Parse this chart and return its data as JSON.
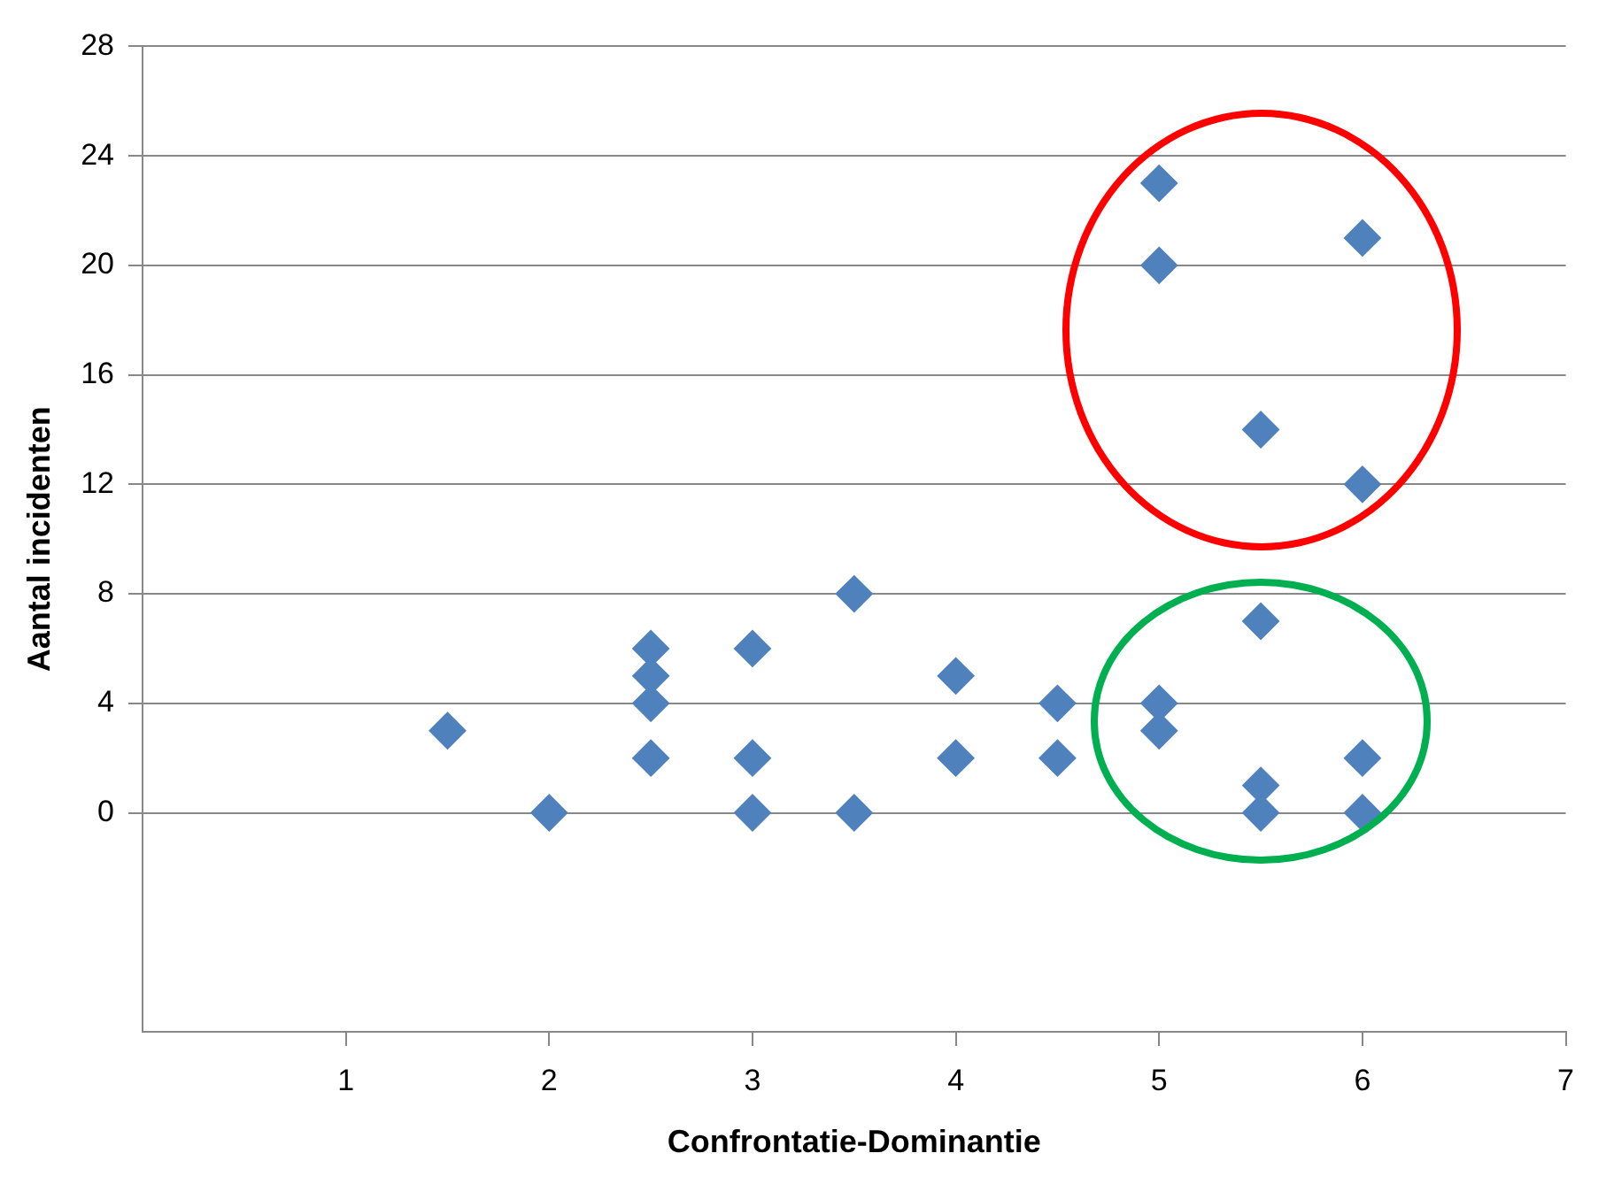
{
  "chart_data": {
    "type": "scatter",
    "xlabel": "Confrontatie-Dominantie",
    "ylabel": "Aantal incidenten",
    "x": [
      1.5,
      2,
      2.5,
      2.5,
      2.5,
      2.5,
      3,
      3,
      3,
      3.5,
      3.5,
      4,
      4,
      4.5,
      4.5,
      5,
      5,
      5,
      5,
      5.5,
      5.5,
      5.5,
      5.5,
      6,
      6,
      6,
      6
    ],
    "series": [
      {
        "color": "#4f81bd",
        "values": [
          3,
          0,
          6,
          5,
          4,
          2,
          6,
          2,
          0,
          8,
          0,
          5,
          2,
          4,
          2,
          23,
          20,
          4,
          3,
          14,
          7,
          1,
          0,
          21,
          12,
          2,
          0
        ]
      }
    ],
    "xlim": [
      0,
      7
    ],
    "xticks": [
      1,
      2,
      3,
      4,
      5,
      6,
      7
    ],
    "ylim": [
      -8,
      28
    ],
    "yticks": [
      0,
      4,
      8,
      12,
      16,
      20,
      24,
      28
    ],
    "grid": "y",
    "legend": false,
    "marker": "diamond"
  }
}
